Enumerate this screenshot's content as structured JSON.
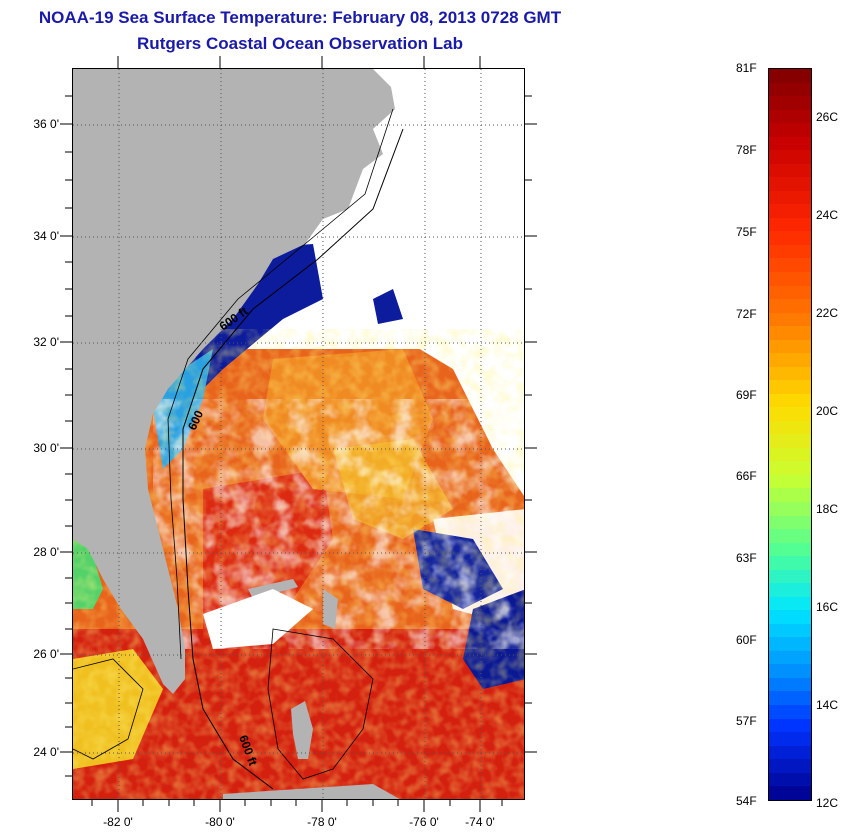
{
  "header": {
    "title": "NOAA-19 Sea Surface Temperature:  February 08, 2013 0728 GMT",
    "subtitle": "Rutgers Coastal Ocean Observation Lab"
  },
  "map": {
    "lat_labels": [
      "36 0'",
      "34 0'",
      "32 0'",
      "30 0'",
      "28 0'",
      "26 0'",
      "24 0'"
    ],
    "lon_labels": [
      "-82 0'",
      "-80 0'",
      "-78 0'",
      "-76 0'",
      "-74 0'"
    ],
    "contour_labels": [
      "600 ft",
      "600",
      "600 ft"
    ],
    "colors": {
      "land": "#b3b3b3",
      "cloud": "#ffffff",
      "cold": "#0a1aa0",
      "warm": "#e8401a",
      "hot": "#d01a10"
    }
  },
  "colorbar": {
    "f_labels": [
      "81F",
      "78F",
      "75F",
      "72F",
      "69F",
      "66F",
      "63F",
      "60F",
      "57F",
      "54F"
    ],
    "c_labels": [
      "26C",
      "24C",
      "22C",
      "20C",
      "18C",
      "16C",
      "14C",
      "12C"
    ]
  }
}
